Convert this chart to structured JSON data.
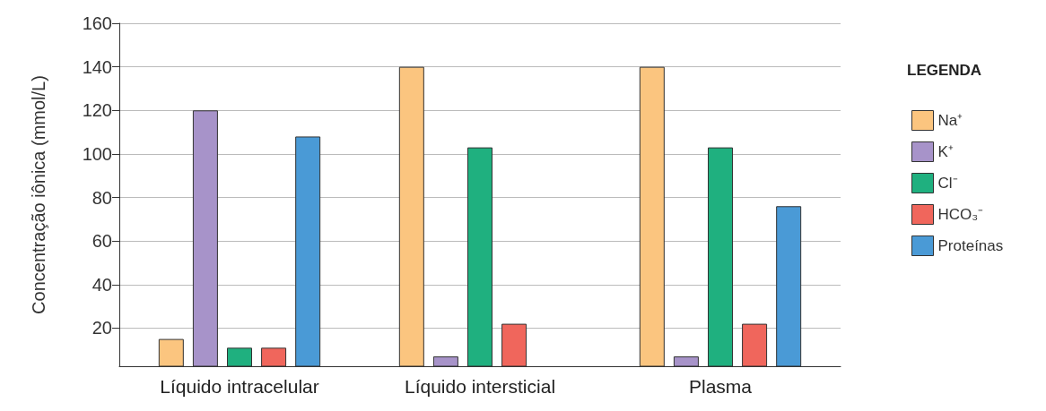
{
  "chart_data": {
    "type": "bar",
    "ylabel": "Concentração iônica (mmol/L)",
    "legend_title": "LEGENDA",
    "categories": [
      "Líquido intracelular",
      "Líquido intersticial",
      "Plasma"
    ],
    "series": [
      {
        "name": "Na⁺",
        "color": "#fbc57f",
        "values": [
          15,
          140,
          140
        ]
      },
      {
        "name": "K⁺",
        "color": "#a793c9",
        "values": [
          120,
          7,
          7
        ]
      },
      {
        "name": "Cl⁻",
        "color": "#1fb07f",
        "values": [
          11,
          103,
          103
        ]
      },
      {
        "name": "HCO₃⁻",
        "color": "#f0665c",
        "values": [
          11,
          22,
          22
        ]
      },
      {
        "name": "Proteínas",
        "color": "#4a9ad6",
        "values": [
          108,
          null,
          76
        ]
      }
    ],
    "ylim": [
      2.5,
      160
    ],
    "yticks": [
      20,
      40,
      60,
      80,
      100,
      120,
      140,
      160
    ],
    "grid": "y",
    "legend": "right"
  }
}
